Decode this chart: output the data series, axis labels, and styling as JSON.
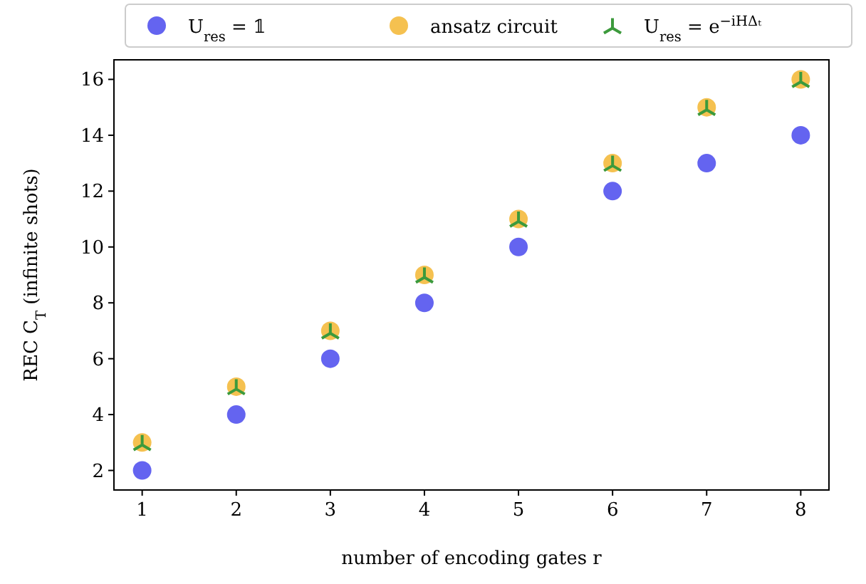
{
  "chart_data": {
    "type": "scatter",
    "xlabel": "number of encoding gates r",
    "ylabel": "REC C$_{T}$ (infinite shots)",
    "x": [
      1,
      2,
      3,
      4,
      5,
      6,
      7,
      8
    ],
    "series": [
      {
        "name": "U$_{res}$ = 𝟙",
        "color": "#6464f0",
        "marker": "circle",
        "values": [
          2,
          4,
          6,
          8,
          10,
          12,
          13,
          14
        ]
      },
      {
        "name": "ansatz circuit",
        "color": "#f5c150",
        "marker": "circle",
        "values": [
          3,
          5,
          7,
          9,
          11,
          13,
          15,
          16
        ]
      },
      {
        "name": "U$_{res}$ = e$^{−iHΔₜ}$",
        "color": "#3c9a3c",
        "marker": "cross",
        "values": [
          3,
          5,
          7,
          9,
          11,
          13,
          15,
          16
        ]
      }
    ],
    "xlim": [
      0.7,
      8.3
    ],
    "xticks": [
      1,
      2,
      3,
      4,
      5,
      6,
      7,
      8
    ],
    "ylim": [
      1.3,
      16.7
    ],
    "yticks": [
      2,
      4,
      6,
      8,
      10,
      12,
      14,
      16
    ],
    "grid": false,
    "legend": "top"
  }
}
